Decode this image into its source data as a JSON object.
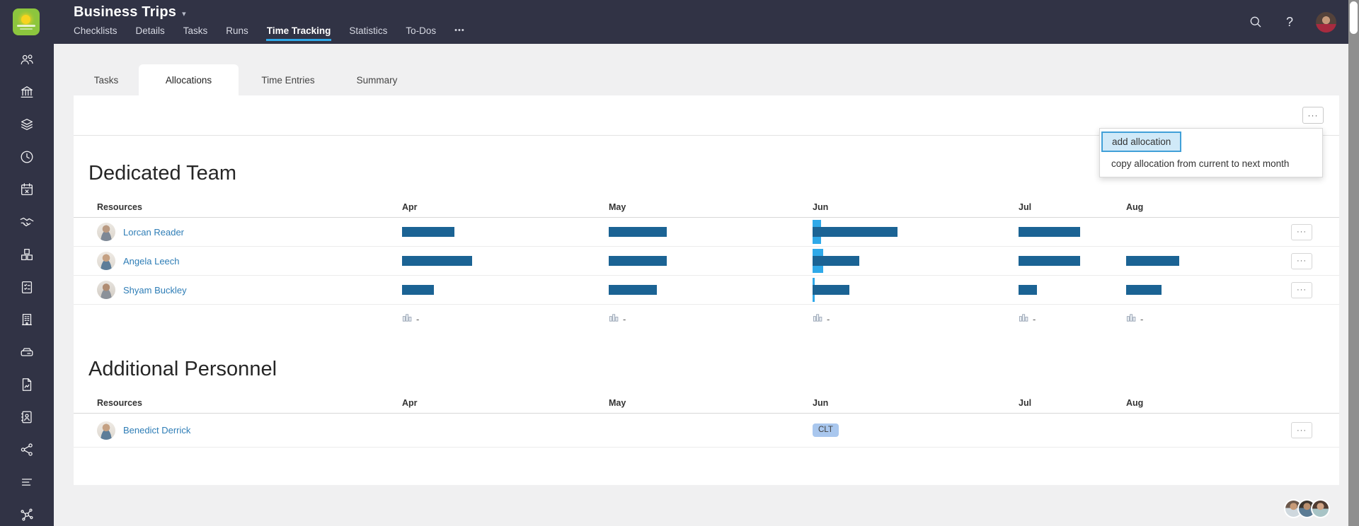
{
  "topbar": {
    "title": "Business Trips",
    "caret": "▾",
    "nav_tabs": [
      "Checklists",
      "Details",
      "Tasks",
      "Runs",
      "Time Tracking",
      "Statistics",
      "To-Dos"
    ],
    "active_nav_tab": "Time Tracking",
    "overflow_label": "•••",
    "icons": [
      "search-icon",
      "help-icon",
      "user-avatar"
    ]
  },
  "sidebar": {
    "icons": [
      "team",
      "institution",
      "layers",
      "time",
      "calendar-x",
      "handshake",
      "modules",
      "checklist",
      "building",
      "server",
      "file-report",
      "contacts",
      "share",
      "list",
      "network"
    ]
  },
  "subtabs": {
    "items": [
      "Tasks",
      "Allocations",
      "Time Entries",
      "Summary"
    ],
    "active": "Allocations"
  },
  "labels": {
    "more": "···"
  },
  "menu": {
    "highlighted_item": "add allocation",
    "items": [
      "add allocation",
      "copy allocation from current to next month"
    ]
  },
  "months": [
    "Apr",
    "May",
    "Jun",
    "Jul",
    "Aug"
  ],
  "dedicated_team": {
    "title": "Dedicated Team",
    "resources_header": "Resources",
    "totals_placeholder": "-",
    "rows": [
      {
        "name": "Lorcan Reader",
        "bars": {
          "Apr": 74,
          "May": 82,
          "Jun": 120,
          "Jul": 87,
          "Aug": 0
        },
        "jun_marker": 12
      },
      {
        "name": "Angela Leech",
        "bars": {
          "Apr": 99,
          "May": 82,
          "Jun": 66,
          "Jul": 87,
          "Aug": 75
        },
        "jun_marker": 15
      },
      {
        "name": "Shyam Buckley",
        "bars": {
          "Apr": 45,
          "May": 68,
          "Jun": 52,
          "Jul": 26,
          "Aug": 50
        },
        "jun_marker": 3
      }
    ]
  },
  "additional_personnel": {
    "title": "Additional Personnel",
    "resources_header": "Resources",
    "rows": [
      {
        "name": "Benedict Derrick",
        "badges": {
          "Jun": "CLT"
        }
      }
    ]
  },
  "colors": {
    "topbar_navy": "#313345",
    "accent_blue": "#2fa9e9",
    "bar_blue": "#1b6394",
    "link_blue": "#2e7db6",
    "badge_blue": "#a9c7ee",
    "logo_green": "#8cc63e",
    "menu_highlight_bg": "#d0e9f8",
    "menu_highlight_border": "#41a0d8"
  }
}
